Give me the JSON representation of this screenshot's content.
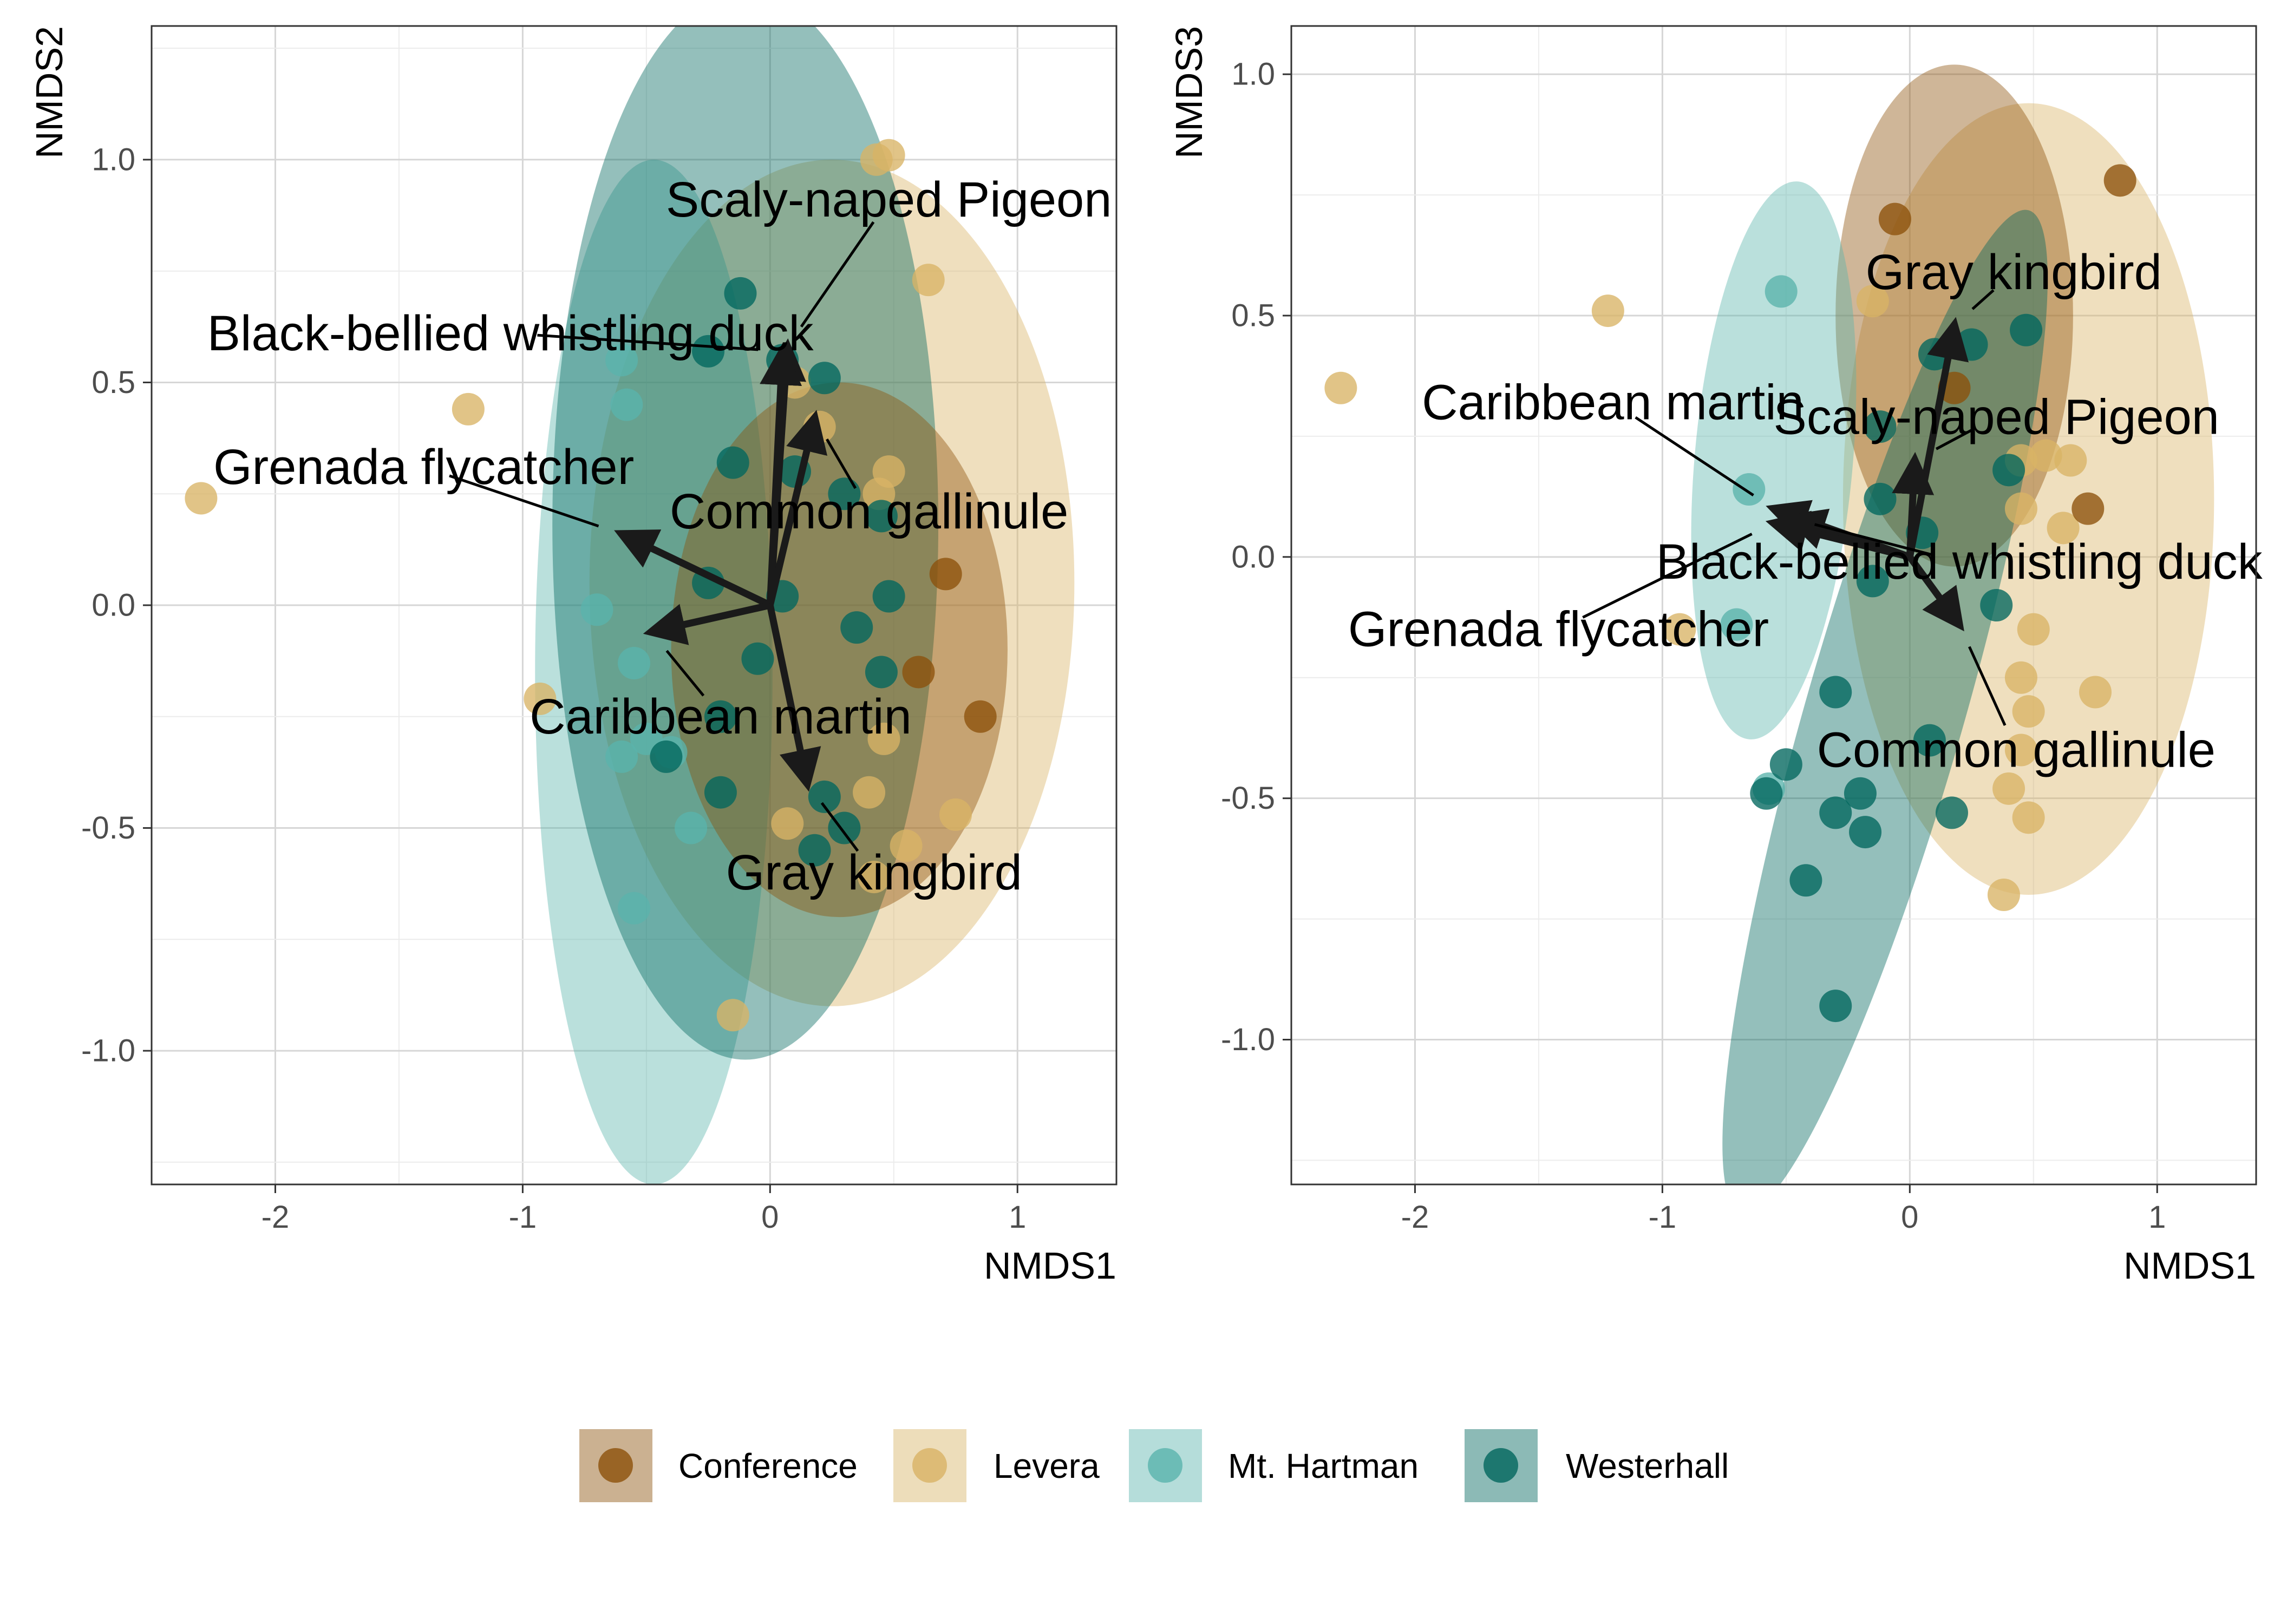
{
  "colors": {
    "Conference": "#8C510A",
    "Levera": "#D8B365",
    "Mt. Hartman": "#5AB4AC",
    "Westerhall": "#01665E"
  },
  "legend": {
    "placement": "bottom",
    "items": [
      "Conference",
      "Levera",
      "Mt. Hartman",
      "Westerhall"
    ]
  },
  "chart_data": [
    {
      "type": "scatter",
      "xlabel": "NMDS1",
      "ylabel": "NMDS2",
      "xlim": [
        -2.5,
        1.4
      ],
      "ylim": [
        -1.3,
        1.3
      ],
      "xticks": [
        "-2",
        "-1",
        "0",
        "1"
      ],
      "yticks": [
        "-1.0",
        "-0.5",
        "0.0",
        "0.5",
        "1.0"
      ],
      "grid": true,
      "ellipses": [
        {
          "group": "Levera",
          "cx": 0.25,
          "cy": 0.05,
          "rx": 0.98,
          "ry": 0.95
        },
        {
          "group": "Mt. Hartman",
          "cx": -0.47,
          "cy": -0.15,
          "rx": 0.48,
          "ry": 1.15
        },
        {
          "group": "Westerhall",
          "cx": -0.1,
          "cy": 0.18,
          "rx": 0.78,
          "ry": 1.2
        },
        {
          "group": "Conference",
          "cx": 0.28,
          "cy": -0.1,
          "rx": 0.68,
          "ry": 0.6
        }
      ],
      "points": [
        {
          "group": "Levera",
          "x": -2.3,
          "y": 0.24
        },
        {
          "group": "Levera",
          "x": -1.22,
          "y": 0.44
        },
        {
          "group": "Levera",
          "x": -0.93,
          "y": -0.21
        },
        {
          "group": "Levera",
          "x": 0.43,
          "y": 1.0
        },
        {
          "group": "Levera",
          "x": 0.48,
          "y": 1.01
        },
        {
          "group": "Levera",
          "x": 0.64,
          "y": 0.73
        },
        {
          "group": "Levera",
          "x": 0.75,
          "y": -0.47
        },
        {
          "group": "Levera",
          "x": 0.55,
          "y": -0.54
        },
        {
          "group": "Levera",
          "x": 0.42,
          "y": -0.61
        },
        {
          "group": "Levera",
          "x": 0.4,
          "y": -0.42
        },
        {
          "group": "Levera",
          "x": 0.46,
          "y": -0.3
        },
        {
          "group": "Levera",
          "x": 0.48,
          "y": 0.3
        },
        {
          "group": "Levera",
          "x": 0.44,
          "y": 0.25
        },
        {
          "group": "Levera",
          "x": 0.2,
          "y": 0.4
        },
        {
          "group": "Levera",
          "x": 0.1,
          "y": 0.5
        },
        {
          "group": "Levera",
          "x": -0.15,
          "y": -0.92
        },
        {
          "group": "Levera",
          "x": 0.07,
          "y": -0.49
        },
        {
          "group": "Conference",
          "x": 0.71,
          "y": 0.07
        },
        {
          "group": "Conference",
          "x": 0.85,
          "y": -0.25
        },
        {
          "group": "Conference",
          "x": 0.6,
          "y": -0.15
        },
        {
          "group": "Mt. Hartman",
          "x": -0.6,
          "y": 0.55
        },
        {
          "group": "Mt. Hartman",
          "x": -0.58,
          "y": 0.45
        },
        {
          "group": "Mt. Hartman",
          "x": -0.7,
          "y": -0.01
        },
        {
          "group": "Mt. Hartman",
          "x": -0.55,
          "y": -0.13
        },
        {
          "group": "Mt. Hartman",
          "x": -0.6,
          "y": -0.34
        },
        {
          "group": "Mt. Hartman",
          "x": -0.5,
          "y": -0.3
        },
        {
          "group": "Mt. Hartman",
          "x": -0.55,
          "y": -0.68
        },
        {
          "group": "Mt. Hartman",
          "x": -0.4,
          "y": -0.33
        },
        {
          "group": "Mt. Hartman",
          "x": -0.32,
          "y": -0.5
        },
        {
          "group": "Westerhall",
          "x": -0.12,
          "y": 0.7
        },
        {
          "group": "Westerhall",
          "x": -0.25,
          "y": 0.57
        },
        {
          "group": "Westerhall",
          "x": 0.05,
          "y": 0.55
        },
        {
          "group": "Westerhall",
          "x": 0.22,
          "y": 0.51
        },
        {
          "group": "Westerhall",
          "x": -0.15,
          "y": 0.32
        },
        {
          "group": "Westerhall",
          "x": 0.1,
          "y": 0.3
        },
        {
          "group": "Westerhall",
          "x": 0.3,
          "y": 0.25
        },
        {
          "group": "Westerhall",
          "x": 0.45,
          "y": 0.2
        },
        {
          "group": "Westerhall",
          "x": -0.25,
          "y": 0.05
        },
        {
          "group": "Westerhall",
          "x": 0.05,
          "y": 0.02
        },
        {
          "group": "Westerhall",
          "x": 0.48,
          "y": 0.02
        },
        {
          "group": "Westerhall",
          "x": 0.35,
          "y": -0.05
        },
        {
          "group": "Westerhall",
          "x": 0.45,
          "y": -0.15
        },
        {
          "group": "Westerhall",
          "x": -0.05,
          "y": -0.12
        },
        {
          "group": "Westerhall",
          "x": -0.2,
          "y": -0.25
        },
        {
          "group": "Westerhall",
          "x": -0.42,
          "y": -0.34
        },
        {
          "group": "Westerhall",
          "x": -0.2,
          "y": -0.42
        },
        {
          "group": "Westerhall",
          "x": 0.22,
          "y": -0.43
        },
        {
          "group": "Westerhall",
          "x": 0.3,
          "y": -0.5
        },
        {
          "group": "Westerhall",
          "x": 0.18,
          "y": -0.55
        }
      ],
      "vectors": [
        {
          "name": "Scaly-naped Pigeon",
          "x": 0.07,
          "y": 0.58,
          "label_x": 0.48,
          "label_y": 0.91
        },
        {
          "name": "Black-bellied whistling duck",
          "x": 0.05,
          "y": 0.57,
          "label_x": -1.05,
          "label_y": 0.61
        },
        {
          "name": "Common gallinule",
          "x": 0.18,
          "y": 0.42,
          "label_x": 0.4,
          "label_y": 0.21
        },
        {
          "name": "Grenada flycatcher",
          "x": -0.6,
          "y": 0.16,
          "label_x": -1.4,
          "label_y": 0.31
        },
        {
          "name": "Caribbean martin",
          "x": -0.48,
          "y": -0.06,
          "label_x": -0.2,
          "label_y": -0.25
        },
        {
          "name": "Gray kingbird",
          "x": 0.15,
          "y": -0.4,
          "label_x": 0.42,
          "label_y": -0.6
        }
      ]
    },
    {
      "type": "scatter",
      "xlabel": "NMDS1",
      "ylabel": "NMDS3",
      "xlim": [
        -2.5,
        1.4
      ],
      "ylim": [
        -1.3,
        1.1
      ],
      "xticks": [
        "-2",
        "-1",
        "0",
        "1"
      ],
      "yticks": [
        "-1.0",
        "-0.5",
        "0.0",
        "0.5",
        "1.0"
      ],
      "grid": true,
      "ellipses": [
        {
          "group": "Levera",
          "cx": 0.48,
          "cy": 0.12,
          "rx": 0.75,
          "ry": 0.82,
          "angle": 0
        },
        {
          "group": "Conference",
          "cx": 0.18,
          "cy": 0.5,
          "rx": 0.48,
          "ry": 0.52,
          "angle": 0
        },
        {
          "group": "Mt. Hartman",
          "cx": -0.55,
          "cy": 0.2,
          "rx": 0.32,
          "ry": 0.58,
          "angle": 5
        },
        {
          "group": "Westerhall",
          "cx": -0.1,
          "cy": -0.32,
          "rx": 0.32,
          "ry": 1.08,
          "angle": 16
        }
      ],
      "points": [
        {
          "group": "Levera",
          "x": -2.3,
          "y": 0.35
        },
        {
          "group": "Levera",
          "x": -1.22,
          "y": 0.51
        },
        {
          "group": "Levera",
          "x": -0.93,
          "y": -0.15
        },
        {
          "group": "Levera",
          "x": 0.75,
          "y": -0.28
        },
        {
          "group": "Levera",
          "x": 0.55,
          "y": 0.21
        },
        {
          "group": "Levera",
          "x": 0.65,
          "y": 0.2
        },
        {
          "group": "Levera",
          "x": 0.45,
          "y": 0.2
        },
        {
          "group": "Levera",
          "x": 0.5,
          "y": -0.15
        },
        {
          "group": "Levera",
          "x": 0.45,
          "y": -0.25
        },
        {
          "group": "Levera",
          "x": 0.45,
          "y": -0.4
        },
        {
          "group": "Levera",
          "x": 0.4,
          "y": -0.48
        },
        {
          "group": "Levera",
          "x": 0.48,
          "y": -0.54
        },
        {
          "group": "Levera",
          "x": 0.38,
          "y": -0.7
        },
        {
          "group": "Levera",
          "x": 0.48,
          "y": -0.32
        },
        {
          "group": "Levera",
          "x": -0.15,
          "y": 0.53
        },
        {
          "group": "Levera",
          "x": 0.45,
          "y": 0.1
        },
        {
          "group": "Levera",
          "x": 0.62,
          "y": 0.06
        },
        {
          "group": "Conference",
          "x": 0.85,
          "y": 0.78
        },
        {
          "group": "Conference",
          "x": -0.06,
          "y": 0.7
        },
        {
          "group": "Conference",
          "x": 0.72,
          "y": 0.1
        },
        {
          "group": "Conference",
          "x": 0.18,
          "y": 0.35
        },
        {
          "group": "Mt. Hartman",
          "x": -0.7,
          "y": -0.14
        },
        {
          "group": "Mt. Hartman",
          "x": -0.65,
          "y": 0.14
        },
        {
          "group": "Mt. Hartman",
          "x": -0.52,
          "y": 0.55
        },
        {
          "group": "Mt. Hartman",
          "x": -0.57,
          "y": -0.48
        },
        {
          "group": "Westerhall",
          "x": -0.58,
          "y": -0.49
        },
        {
          "group": "Westerhall",
          "x": -0.5,
          "y": -0.43
        },
        {
          "group": "Westerhall",
          "x": -0.42,
          "y": -0.67
        },
        {
          "group": "Westerhall",
          "x": -0.2,
          "y": -0.49
        },
        {
          "group": "Westerhall",
          "x": -0.18,
          "y": -0.57
        },
        {
          "group": "Westerhall",
          "x": 0.17,
          "y": -0.53
        },
        {
          "group": "Westerhall",
          "x": -0.3,
          "y": -0.53
        },
        {
          "group": "Westerhall",
          "x": -0.3,
          "y": -0.93
        },
        {
          "group": "Westerhall",
          "x": -0.3,
          "y": -0.28
        },
        {
          "group": "Westerhall",
          "x": -0.15,
          "y": -0.05
        },
        {
          "group": "Westerhall",
          "x": -0.12,
          "y": 0.27
        },
        {
          "group": "Westerhall",
          "x": -0.12,
          "y": 0.12
        },
        {
          "group": "Westerhall",
          "x": 0.05,
          "y": 0.05
        },
        {
          "group": "Westerhall",
          "x": 0.1,
          "y": 0.42
        },
        {
          "group": "Westerhall",
          "x": 0.25,
          "y": 0.44
        },
        {
          "group": "Westerhall",
          "x": 0.47,
          "y": 0.47
        },
        {
          "group": "Westerhall",
          "x": 0.4,
          "y": 0.18
        },
        {
          "group": "Westerhall",
          "x": 0.08,
          "y": -0.38
        },
        {
          "group": "Westerhall",
          "x": 0.35,
          "y": -0.1
        }
      ],
      "vectors": [
        {
          "name": "Gray kingbird",
          "x": 0.18,
          "y": 0.48,
          "label_x": 0.42,
          "label_y": 0.59
        },
        {
          "name": "Scaly-naped Pigeon",
          "x": 0.02,
          "y": 0.2,
          "label_x": 0.35,
          "label_y": 0.29
        },
        {
          "name": "Caribbean martin",
          "x": -0.55,
          "y": 0.1,
          "label_x": -1.2,
          "label_y": 0.32
        },
        {
          "name": "Black-bellied whistling duck",
          "x": -0.48,
          "y": 0.08,
          "label_x": 0.2,
          "label_y": -0.01
        },
        {
          "name": "Grenada flycatcher",
          "x": -0.55,
          "y": 0.07,
          "label_x": -1.42,
          "label_y": -0.15
        },
        {
          "name": "Common gallinule",
          "x": 0.2,
          "y": -0.14,
          "label_x": 0.43,
          "label_y": -0.4
        }
      ]
    }
  ]
}
